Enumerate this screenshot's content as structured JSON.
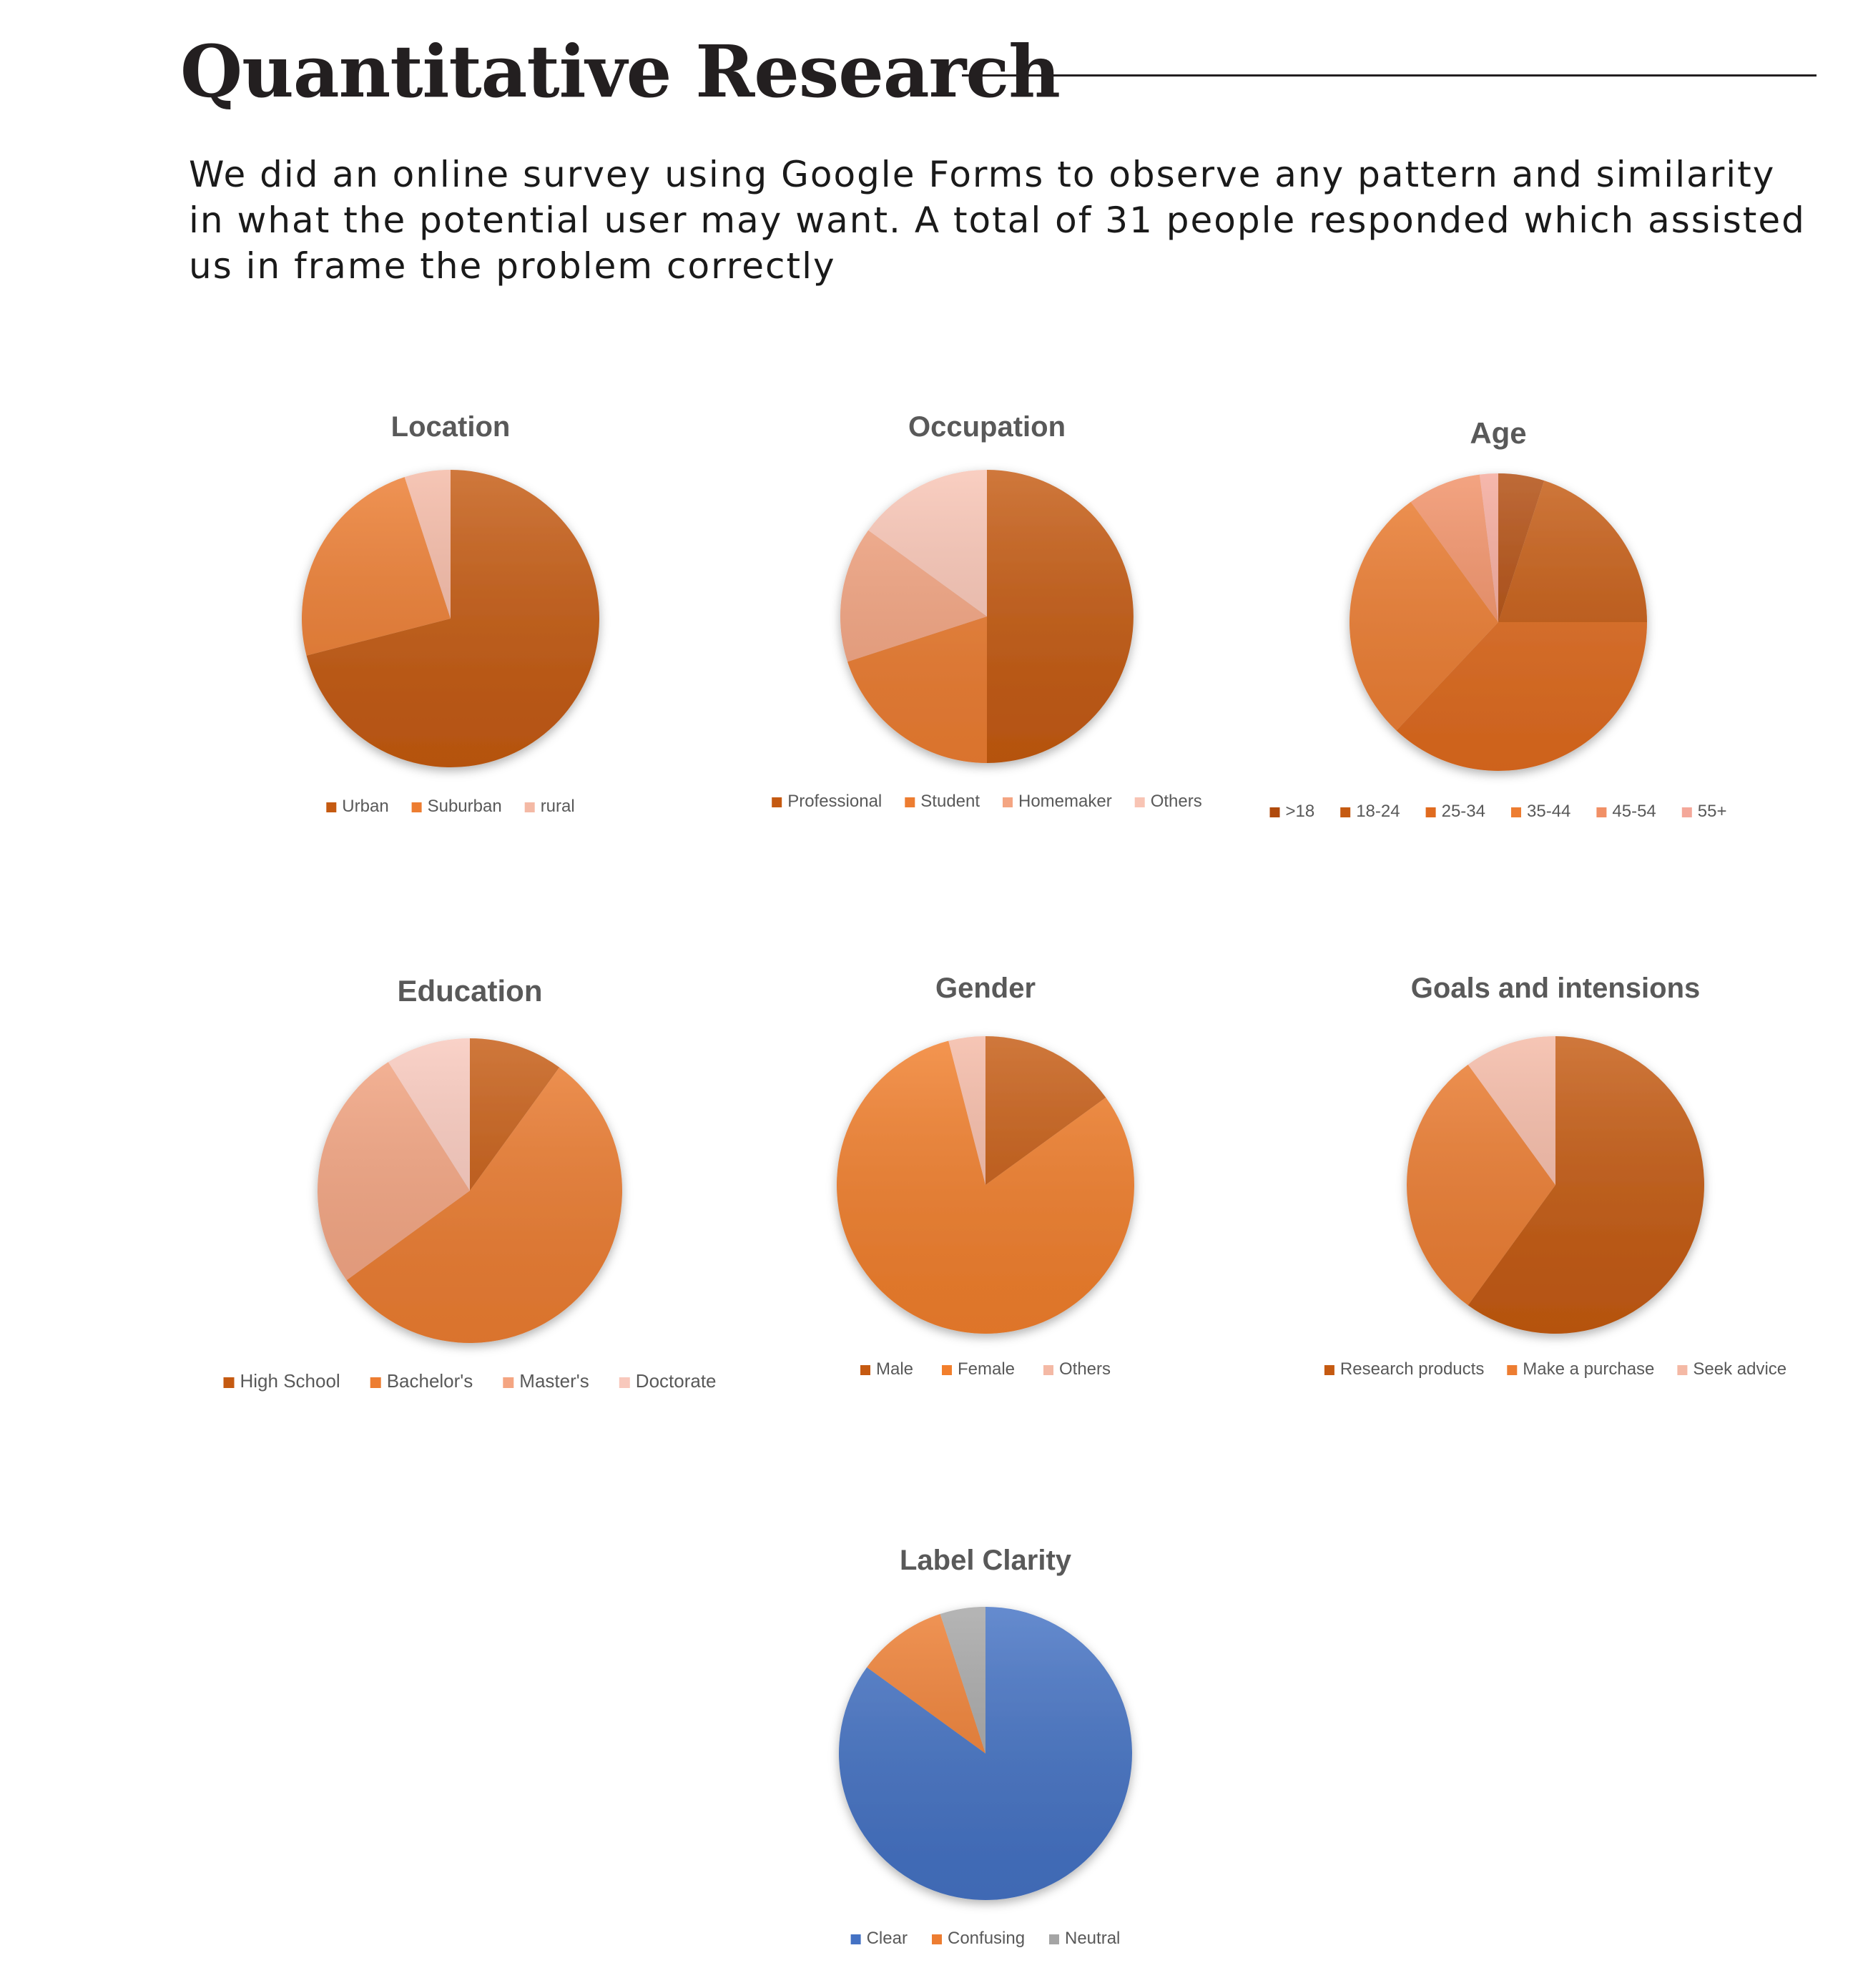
{
  "page": {
    "title": "Quantitative Research",
    "intro": "We did an online survey using Google Forms to observe any pattern and similarity in what the potential user may want. A total of 31 people responded which assisted us in frame the problem correctly"
  },
  "chart_data": [
    {
      "type": "pie",
      "title": "Location",
      "categories": [
        "Urban",
        "Suburban",
        "rural"
      ],
      "values": [
        71,
        24,
        5
      ],
      "colors": [
        "#c55a11",
        "#ed7d31",
        "#f4b9a5"
      ],
      "legend": "bottom"
    },
    {
      "type": "pie",
      "title": "Occupation",
      "categories": [
        "Professional",
        "Student",
        "Homemaker",
        "Others"
      ],
      "values": [
        50,
        20,
        15,
        15
      ],
      "colors": [
        "#c55a11",
        "#ed7d31",
        "#f4a582",
        "#f8c4b4"
      ],
      "legend": "bottom"
    },
    {
      "type": "pie",
      "title": "Age",
      "categories": [
        ">18",
        "18-24",
        "25-34",
        "35-44",
        "45-54",
        "55+"
      ],
      "values": [
        5,
        20,
        37,
        28,
        8,
        2
      ],
      "colors": [
        "#b04a0c",
        "#c55a11",
        "#e06b1f",
        "#ed7d31",
        "#f19066",
        "#f4a89a"
      ],
      "legend": "bottom"
    },
    {
      "type": "pie",
      "title": "Education",
      "categories": [
        "High School",
        "Bachelor's",
        "Master's",
        "Doctorate"
      ],
      "values": [
        10,
        55,
        26,
        9
      ],
      "colors": [
        "#c55a11",
        "#ed7d31",
        "#f4a582",
        "#f8c8bc"
      ],
      "legend": "bottom"
    },
    {
      "type": "pie",
      "title": "Gender",
      "categories": [
        "Male",
        "Female",
        "Others"
      ],
      "values": [
        15,
        81,
        4
      ],
      "colors": [
        "#c55a11",
        "#f27f2c",
        "#f4b9a5"
      ],
      "legend": "bottom"
    },
    {
      "type": "pie",
      "title": "Goals and intensions",
      "categories": [
        "Research products",
        "Make a purchase",
        "Seek advice"
      ],
      "values": [
        60,
        30,
        10
      ],
      "colors": [
        "#c55a11",
        "#ed7d31",
        "#f4b9a5"
      ],
      "legend": "bottom"
    },
    {
      "type": "pie",
      "title": "Label Clarity",
      "categories": [
        "Clear",
        "Confusing",
        "Neutral"
      ],
      "values": [
        85,
        10,
        5
      ],
      "colors": [
        "#4472c4",
        "#ed7d31",
        "#a5a5a5"
      ],
      "legend": "bottom"
    }
  ]
}
